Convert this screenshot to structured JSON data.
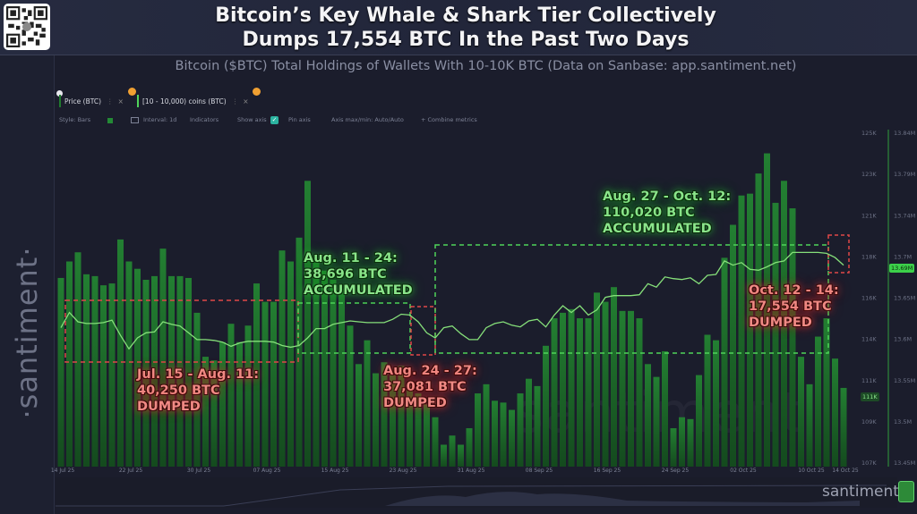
{
  "header": {
    "title_line1": "Bitcoin’s Key Whale & Shark Tier Collectively",
    "title_line2": "Dumps 17,554 BTC In the Past Two Days",
    "subtitle": "Bitcoin ($BTC) Total Holdings of Wallets With 10-10K BTC (Data on Sanbase: app.santiment.net)"
  },
  "legend": {
    "items": [
      {
        "label": "Price (BTC)",
        "close": "×",
        "menu": "⋮"
      },
      {
        "label": "[10 - 10,000) coins (BTC)",
        "close": "×",
        "menu": "⋮"
      }
    ]
  },
  "toolbar": {
    "style": "Style: Bars",
    "interval": "Interval: 1d",
    "indicators": "Indicators",
    "show_axis": "Show axis",
    "pin_axis": "Pin axis",
    "axis_maxmin": "Axis max/min: Auto/Auto",
    "combine": "+ Combine metrics",
    "checkmark": "✓"
  },
  "watermark": "santiment",
  "side_watermark": "·santiment·",
  "logo": "santiment·",
  "colors": {
    "bar": "#1f7a2e",
    "line": "#86e07a",
    "red": "#e04848",
    "green": "#4fd45a",
    "background": "#1b1d2c"
  },
  "chart_data": {
    "type": "bar+line",
    "title": "Bitcoin ($BTC) Total Holdings of Wallets With 10-10K BTC",
    "start_date": "14 Jul 25",
    "end_date": "14 Oct 25",
    "interval": "1d",
    "x_tick_labels": [
      {
        "label": "14 Jul 25",
        "index": 0
      },
      {
        "label": "22 Jul 25",
        "index": 8
      },
      {
        "label": "30 Jul 25",
        "index": 16
      },
      {
        "label": "07 Aug 25",
        "index": 24
      },
      {
        "label": "15 Aug 25",
        "index": 32
      },
      {
        "label": "23 Aug 25",
        "index": 40
      },
      {
        "label": "31 Aug 25",
        "index": 48
      },
      {
        "label": "08 Sep 25",
        "index": 56
      },
      {
        "label": "16 Sep 25",
        "index": 64
      },
      {
        "label": "24 Sep 25",
        "index": 72
      },
      {
        "label": "02 Oct 25",
        "index": 80
      },
      {
        "label": "10 Oct 25",
        "index": 88
      },
      {
        "label": "14 Oct 25",
        "index": 92
      }
    ],
    "price_axis": {
      "label": "Price (BTC)",
      "unit": "USD (K)",
      "range": [
        107,
        125
      ],
      "ticks": [
        "125K",
        "123K",
        "121K",
        "118K",
        "116K",
        "114K",
        "111K",
        "109K",
        "107K"
      ],
      "current": "111K"
    },
    "holdings_axis": {
      "label": "[10 - 10,000) coins (BTC)",
      "unit": "BTC (M)",
      "range": [
        13.45,
        13.84
      ],
      "ticks": [
        "13.84M",
        "13.79M",
        "13.74M",
        "13.7M",
        "13.65M",
        "13.6M",
        "13.55M",
        "13.5M",
        "13.45M"
      ],
      "current": "13.69M"
    },
    "series": [
      {
        "name": "Price (BTC)",
        "style": "bars",
        "values": [
          117.1,
          118.0,
          118.5,
          117.3,
          117.2,
          116.7,
          116.8,
          119.2,
          118.0,
          117.6,
          117.0,
          117.2,
          118.7,
          117.2,
          117.2,
          117.1,
          115.2,
          112.8,
          112.6,
          113.6,
          114.6,
          113.6,
          114.5,
          116.8,
          115.8,
          115.8,
          118.6,
          118.0,
          119.3,
          122.4,
          118.2,
          117.5,
          117.0,
          116.5,
          114.5,
          112.4,
          113.7,
          111.9,
          112.5,
          111.8,
          112.3,
          111.2,
          110.8,
          110.2,
          109.5,
          108.0,
          108.5,
          108.0,
          108.9,
          110.8,
          111.3,
          110.4,
          110.3,
          109.9,
          110.8,
          111.6,
          111.2,
          113.4,
          114.9,
          115.2,
          115.4,
          114.9,
          114.9,
          116.3,
          115.8,
          116.6,
          115.3,
          115.3,
          114.9,
          112.4,
          111.7,
          113.1,
          108.9,
          109.5,
          109.4,
          111.8,
          114.0,
          113.7,
          118.2,
          120.0,
          121.6,
          121.7,
          122.8,
          123.9,
          121.2,
          122.4,
          120.9,
          112.8,
          111.3,
          113.9,
          114.9,
          112.7,
          111.1
        ]
      },
      {
        "name": "[10 - 10,000) coins (BTC)",
        "style": "line",
        "values": [
          13.61,
          13.628,
          13.617,
          13.615,
          13.615,
          13.616,
          13.619,
          13.601,
          13.585,
          13.598,
          13.604,
          13.605,
          13.617,
          13.614,
          13.612,
          13.604,
          13.596,
          13.596,
          13.595,
          13.593,
          13.588,
          13.592,
          13.594,
          13.594,
          13.594,
          13.593,
          13.589,
          13.587,
          13.589,
          13.598,
          13.609,
          13.609,
          13.614,
          13.616,
          13.618,
          13.617,
          13.616,
          13.616,
          13.616,
          13.62,
          13.626,
          13.625,
          13.617,
          13.604,
          13.598,
          13.61,
          13.612,
          13.603,
          13.596,
          13.596,
          13.61,
          13.615,
          13.617,
          13.613,
          13.611,
          13.618,
          13.62,
          13.611,
          13.625,
          13.636,
          13.628,
          13.636,
          13.625,
          13.631,
          13.646,
          13.648,
          13.648,
          13.648,
          13.649,
          13.662,
          13.658,
          13.67,
          13.668,
          13.667,
          13.669,
          13.662,
          13.672,
          13.673,
          13.689,
          13.684,
          13.687,
          13.679,
          13.678,
          13.682,
          13.687,
          13.689,
          13.699,
          13.699,
          13.699,
          13.699,
          13.698,
          13.693,
          13.684
        ]
      }
    ],
    "annotations": [
      {
        "period": "Jul. 15 - Aug. 11:",
        "amount": "40,250 BTC",
        "action": "DUMPED",
        "kind": "red"
      },
      {
        "period": "Aug. 11 - 24:",
        "amount": "38,696 BTC",
        "action": "ACCUMULATED",
        "kind": "green"
      },
      {
        "period": "Aug. 24 - 27:",
        "amount": "37,081 BTC",
        "action": "DUMPED",
        "kind": "red"
      },
      {
        "period": "Aug. 27 - Oct. 12:",
        "amount": "110,020 BTC",
        "action": "ACCUMULATED",
        "kind": "green"
      },
      {
        "period": "Oct. 12 - 14:",
        "amount": "17,554 BTC",
        "action": "DUMPED",
        "kind": "red"
      }
    ]
  }
}
